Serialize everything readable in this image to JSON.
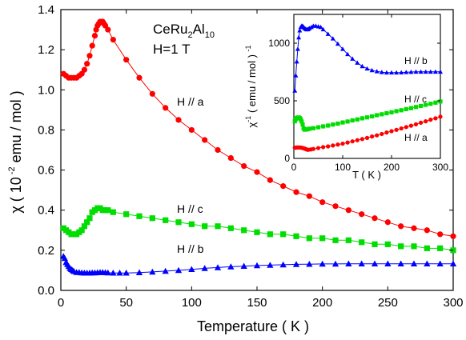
{
  "chart_data": [
    {
      "type": "scatter",
      "title_lines": [
        "CeRu2Al10",
        "H=1 T"
      ],
      "title_parts": {
        "base": "CeRu",
        "sub1": "2",
        "mid": "Al",
        "sub2": "10",
        "field": "H=1 T"
      },
      "xlabel": "Temperature ( K )",
      "ylabel": {
        "pre": "χ ( 10",
        "sup": " -2",
        "post": " emu / mol )"
      },
      "xlim": [
        0,
        300
      ],
      "ylim": [
        0,
        1.4
      ],
      "xticks": [
        0,
        50,
        100,
        150,
        200,
        250,
        300
      ],
      "yticks": [
        0.0,
        0.2,
        0.4,
        0.6,
        0.8,
        1.0,
        1.2,
        1.4
      ],
      "grid": false,
      "series": [
        {
          "name": "H // a",
          "marker": "circle",
          "color": "#ff0000",
          "x": [
            2,
            4,
            6,
            8,
            10,
            12,
            14,
            16,
            18,
            20,
            22,
            24,
            26,
            27,
            28,
            29,
            30,
            31,
            32,
            33,
            34,
            36,
            40,
            50,
            60,
            70,
            80,
            90,
            100,
            110,
            120,
            130,
            140,
            150,
            160,
            170,
            180,
            190,
            200,
            210,
            220,
            230,
            240,
            250,
            260,
            270,
            280,
            290,
            300
          ],
          "y": [
            1.08,
            1.07,
            1.06,
            1.06,
            1.06,
            1.06,
            1.07,
            1.08,
            1.1,
            1.13,
            1.17,
            1.22,
            1.27,
            1.3,
            1.32,
            1.33,
            1.34,
            1.34,
            1.34,
            1.33,
            1.32,
            1.3,
            1.25,
            1.15,
            1.06,
            0.98,
            0.91,
            0.85,
            0.8,
            0.75,
            0.7,
            0.66,
            0.62,
            0.59,
            0.55,
            0.52,
            0.49,
            0.47,
            0.44,
            0.42,
            0.4,
            0.38,
            0.36,
            0.34,
            0.32,
            0.31,
            0.3,
            0.28,
            0.27
          ]
        },
        {
          "name": "H // c",
          "marker": "square",
          "color": "#00dd00",
          "x": [
            2,
            4,
            6,
            8,
            10,
            12,
            14,
            16,
            18,
            20,
            22,
            24,
            26,
            28,
            30,
            32,
            34,
            36,
            40,
            50,
            60,
            70,
            80,
            90,
            100,
            110,
            120,
            130,
            140,
            150,
            160,
            170,
            180,
            190,
            200,
            210,
            220,
            230,
            240,
            250,
            260,
            270,
            280,
            290,
            300
          ],
          "y": [
            0.31,
            0.3,
            0.29,
            0.28,
            0.28,
            0.28,
            0.29,
            0.3,
            0.32,
            0.34,
            0.36,
            0.39,
            0.4,
            0.41,
            0.41,
            0.4,
            0.4,
            0.4,
            0.39,
            0.38,
            0.37,
            0.36,
            0.35,
            0.34,
            0.33,
            0.32,
            0.32,
            0.31,
            0.3,
            0.29,
            0.28,
            0.28,
            0.27,
            0.26,
            0.26,
            0.25,
            0.25,
            0.24,
            0.23,
            0.23,
            0.22,
            0.22,
            0.21,
            0.21,
            0.2
          ]
        },
        {
          "name": "H // b",
          "marker": "triangle",
          "color": "#0000ff",
          "x": [
            2,
            3,
            4,
            5,
            6,
            7,
            8,
            9,
            10,
            12,
            14,
            16,
            18,
            20,
            22,
            24,
            26,
            28,
            30,
            32,
            34,
            36,
            40,
            45,
            50,
            60,
            70,
            80,
            90,
            100,
            110,
            120,
            130,
            140,
            150,
            160,
            170,
            180,
            190,
            200,
            210,
            220,
            230,
            240,
            250,
            260,
            270,
            280,
            290,
            300
          ],
          "y": [
            0.17,
            0.16,
            0.14,
            0.13,
            0.12,
            0.11,
            0.105,
            0.1,
            0.095,
            0.09,
            0.09,
            0.088,
            0.087,
            0.087,
            0.087,
            0.088,
            0.088,
            0.089,
            0.09,
            0.09,
            0.089,
            0.088,
            0.087,
            0.087,
            0.087,
            0.089,
            0.092,
            0.096,
            0.1,
            0.105,
            0.11,
            0.114,
            0.118,
            0.121,
            0.124,
            0.126,
            0.128,
            0.13,
            0.131,
            0.132,
            0.132,
            0.133,
            0.133,
            0.133,
            0.133,
            0.133,
            0.133,
            0.133,
            0.133,
            0.133
          ]
        }
      ],
      "annotations": [
        "H // a",
        "H // c",
        "H // b"
      ]
    },
    {
      "type": "scatter",
      "inset": true,
      "xlabel": "T ( K )",
      "ylabel": {
        "pre": "χ",
        "sup1": "-1",
        "mid": " ( emu / mol ) ",
        "sup2": "-1"
      },
      "xlim": [
        0,
        300
      ],
      "ylim": [
        0,
        1250
      ],
      "xticks": [
        0,
        100,
        200,
        300
      ],
      "yticks": [
        0,
        500,
        1000
      ],
      "series": [
        {
          "name": "H // b",
          "marker": "triangle",
          "color": "#0000ff",
          "x": [
            2,
            4,
            6,
            8,
            10,
            12,
            14,
            16,
            18,
            20,
            22,
            24,
            26,
            28,
            30,
            32,
            36,
            40,
            45,
            50,
            55,
            60,
            70,
            80,
            90,
            100,
            110,
            120,
            130,
            140,
            150,
            160,
            170,
            180,
            190,
            200,
            210,
            220,
            230,
            240,
            250,
            260,
            270,
            280,
            290,
            300
          ],
          "y": [
            588,
            720,
            840,
            950,
            1050,
            1110,
            1140,
            1150,
            1150,
            1140,
            1130,
            1125,
            1120,
            1120,
            1125,
            1130,
            1140,
            1150,
            1150,
            1145,
            1140,
            1120,
            1080,
            1040,
            995,
            950,
            905,
            865,
            830,
            800,
            780,
            765,
            755,
            748,
            745,
            745,
            745,
            746,
            748,
            750,
            752,
            752,
            752,
            752,
            752,
            752
          ]
        },
        {
          "name": "H // c",
          "marker": "square",
          "color": "#00dd00",
          "x": [
            2,
            4,
            6,
            8,
            10,
            12,
            14,
            16,
            18,
            20,
            22,
            24,
            28,
            32,
            40,
            50,
            60,
            70,
            80,
            90,
            100,
            110,
            120,
            130,
            140,
            150,
            160,
            170,
            180,
            190,
            200,
            210,
            220,
            230,
            240,
            250,
            260,
            270,
            280,
            290,
            300
          ],
          "y": [
            322,
            340,
            350,
            355,
            355,
            350,
            340,
            320,
            295,
            260,
            250,
            250,
            253,
            258,
            262,
            270,
            278,
            285,
            294,
            302,
            312,
            320,
            330,
            338,
            348,
            356,
            365,
            375,
            383,
            392,
            400,
            410,
            418,
            428,
            436,
            446,
            455,
            465,
            474,
            484,
            494
          ]
        },
        {
          "name": "H // a",
          "marker": "circle",
          "color": "#ff0000",
          "x": [
            2,
            4,
            6,
            8,
            10,
            12,
            14,
            16,
            18,
            20,
            22,
            24,
            26,
            28,
            30,
            35,
            40,
            50,
            60,
            70,
            80,
            90,
            100,
            110,
            120,
            130,
            140,
            150,
            160,
            170,
            180,
            190,
            200,
            210,
            220,
            230,
            240,
            250,
            260,
            270,
            280,
            290,
            300
          ],
          "y": [
            93,
            94,
            95,
            95,
            95,
            95,
            94,
            93,
            90,
            88,
            85,
            82,
            78,
            75,
            75,
            78,
            82,
            90,
            98,
            104,
            112,
            120,
            128,
            138,
            148,
            158,
            168,
            178,
            190,
            200,
            212,
            225,
            236,
            248,
            260,
            272,
            284,
            296,
            310,
            322,
            336,
            348,
            362
          ]
        }
      ],
      "annotations": [
        "H // b",
        "H // c",
        "H // a"
      ]
    }
  ]
}
